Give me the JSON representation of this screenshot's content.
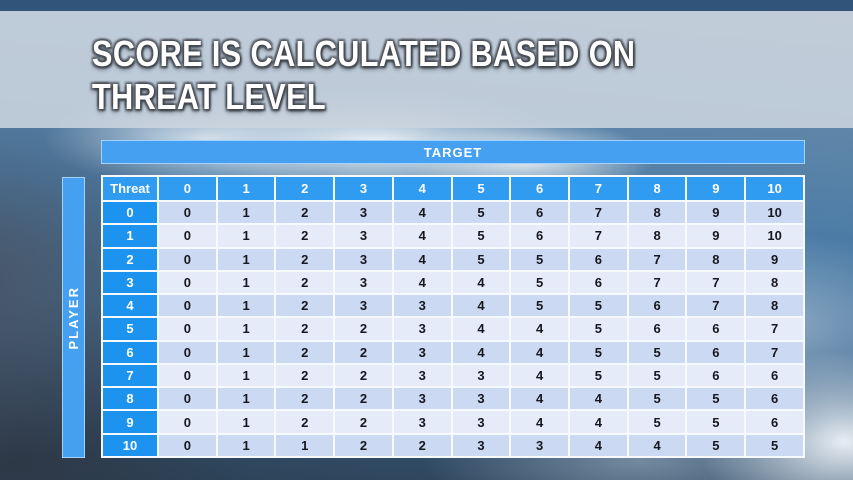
{
  "title": {
    "line1": "SCORE IS CALCULATED BASED ON",
    "line2": "THREAT LEVEL"
  },
  "table": {
    "target_axis_label": "TARGET",
    "player_axis_label": "PLAYER",
    "corner_header": "Threat",
    "column_headers": [
      "0",
      "1",
      "2",
      "3",
      "4",
      "5",
      "6",
      "7",
      "8",
      "9",
      "10"
    ],
    "rows": [
      {
        "label": "0",
        "values": [
          0,
          1,
          2,
          3,
          4,
          5,
          6,
          7,
          8,
          9,
          10
        ]
      },
      {
        "label": "1",
        "values": [
          0,
          1,
          2,
          3,
          4,
          5,
          6,
          7,
          8,
          9,
          10
        ]
      },
      {
        "label": "2",
        "values": [
          0,
          1,
          2,
          3,
          4,
          5,
          5,
          6,
          7,
          8,
          9
        ]
      },
      {
        "label": "3",
        "values": [
          0,
          1,
          2,
          3,
          4,
          4,
          5,
          6,
          7,
          7,
          8
        ]
      },
      {
        "label": "4",
        "values": [
          0,
          1,
          2,
          3,
          3,
          4,
          5,
          5,
          6,
          7,
          8
        ]
      },
      {
        "label": "5",
        "values": [
          0,
          1,
          2,
          2,
          3,
          4,
          4,
          5,
          6,
          6,
          7
        ]
      },
      {
        "label": "6",
        "values": [
          0,
          1,
          2,
          2,
          3,
          4,
          4,
          5,
          5,
          6,
          7
        ]
      },
      {
        "label": "7",
        "values": [
          0,
          1,
          2,
          2,
          3,
          3,
          4,
          5,
          5,
          6,
          6
        ]
      },
      {
        "label": "8",
        "values": [
          0,
          1,
          2,
          2,
          3,
          3,
          4,
          4,
          5,
          5,
          6
        ]
      },
      {
        "label": "9",
        "values": [
          0,
          1,
          2,
          2,
          3,
          3,
          4,
          4,
          5,
          5,
          6
        ]
      },
      {
        "label": "10",
        "values": [
          0,
          1,
          1,
          2,
          2,
          3,
          3,
          4,
          4,
          5,
          5
        ]
      }
    ]
  },
  "colors": {
    "header_blue": "#2F9CF2",
    "row_label_blue": "#1D93F0",
    "axis_bar_blue": "#46A0F2",
    "row_even_bg": "#CBD9F2",
    "row_odd_bg": "#E6EBF9",
    "top_strip_blue": "#30547A",
    "banner_bg": "#CBD4DE",
    "title_text": "#FFFFFF"
  }
}
